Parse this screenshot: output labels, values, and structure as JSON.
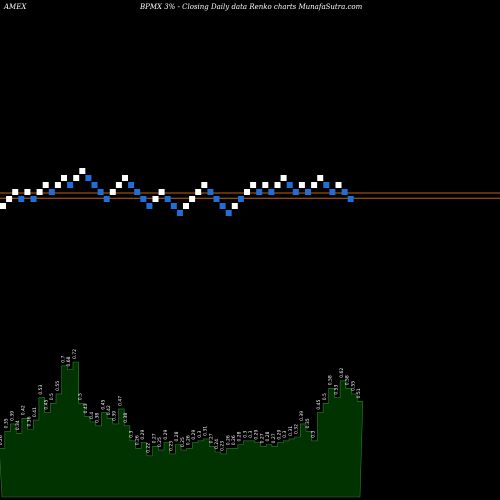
{
  "header": {
    "exchange": "AMEX",
    "title": "BPMX  3% -  Closing Daily data  Renko  charts MunafaSutra.com"
  },
  "colors": {
    "background": "#000000",
    "brick_up": "#ffffff",
    "brick_down": "#1e6fd9",
    "reference_line": "#c06010",
    "volume_fill": "#003300",
    "volume_stroke": "#2e7d32"
  },
  "chart_data": [
    {
      "type": "renko",
      "bricks": [
        {
          "level": 0,
          "dir": "up"
        },
        {
          "level": 1,
          "dir": "up"
        },
        {
          "level": 2,
          "dir": "up"
        },
        {
          "level": 1,
          "dir": "down"
        },
        {
          "level": 2,
          "dir": "up"
        },
        {
          "level": 1,
          "dir": "down"
        },
        {
          "level": 2,
          "dir": "up"
        },
        {
          "level": 3,
          "dir": "up"
        },
        {
          "level": 2,
          "dir": "down"
        },
        {
          "level": 3,
          "dir": "up"
        },
        {
          "level": 4,
          "dir": "up"
        },
        {
          "level": 3,
          "dir": "down"
        },
        {
          "level": 4,
          "dir": "up"
        },
        {
          "level": 5,
          "dir": "up"
        },
        {
          "level": 4,
          "dir": "down"
        },
        {
          "level": 3,
          "dir": "down"
        },
        {
          "level": 2,
          "dir": "down"
        },
        {
          "level": 1,
          "dir": "down"
        },
        {
          "level": 2,
          "dir": "up"
        },
        {
          "level": 3,
          "dir": "up"
        },
        {
          "level": 4,
          "dir": "up"
        },
        {
          "level": 3,
          "dir": "down"
        },
        {
          "level": 2,
          "dir": "down"
        },
        {
          "level": 1,
          "dir": "down"
        },
        {
          "level": 0,
          "dir": "down"
        },
        {
          "level": 1,
          "dir": "up"
        },
        {
          "level": 2,
          "dir": "up"
        },
        {
          "level": 1,
          "dir": "down"
        },
        {
          "level": 0,
          "dir": "down"
        },
        {
          "level": -1,
          "dir": "down"
        },
        {
          "level": 0,
          "dir": "up"
        },
        {
          "level": 1,
          "dir": "up"
        },
        {
          "level": 2,
          "dir": "up"
        },
        {
          "level": 3,
          "dir": "up"
        },
        {
          "level": 2,
          "dir": "down"
        },
        {
          "level": 1,
          "dir": "down"
        },
        {
          "level": 0,
          "dir": "down"
        },
        {
          "level": -1,
          "dir": "down"
        },
        {
          "level": 0,
          "dir": "up"
        },
        {
          "level": 1,
          "dir": "down"
        },
        {
          "level": 2,
          "dir": "up"
        },
        {
          "level": 3,
          "dir": "up"
        },
        {
          "level": 2,
          "dir": "down"
        },
        {
          "level": 3,
          "dir": "up"
        },
        {
          "level": 2,
          "dir": "down"
        },
        {
          "level": 3,
          "dir": "up"
        },
        {
          "level": 4,
          "dir": "up"
        },
        {
          "level": 3,
          "dir": "down"
        },
        {
          "level": 2,
          "dir": "down"
        },
        {
          "level": 3,
          "dir": "up"
        },
        {
          "level": 2,
          "dir": "down"
        },
        {
          "level": 3,
          "dir": "up"
        },
        {
          "level": 4,
          "dir": "up"
        },
        {
          "level": 3,
          "dir": "down"
        },
        {
          "level": 2,
          "dir": "down"
        },
        {
          "level": 3,
          "dir": "up"
        },
        {
          "level": 2,
          "dir": "down"
        },
        {
          "level": 1,
          "dir": "down"
        }
      ],
      "reference_lines": [
        1.5,
        0.75
      ]
    },
    {
      "type": "bar",
      "title": "volume",
      "values": [
        0.26,
        0.35,
        0.39,
        0.34,
        0.42,
        0.36,
        0.41,
        0.53,
        0.45,
        0.5,
        0.55,
        0.7,
        0.68,
        0.72,
        0.5,
        0.43,
        0.4,
        0.38,
        0.45,
        0.42,
        0.39,
        0.47,
        0.38,
        0.3,
        0.26,
        0.29,
        0.22,
        0.27,
        0.25,
        0.29,
        0.23,
        0.28,
        0.25,
        0.26,
        0.29,
        0.3,
        0.31,
        0.27,
        0.24,
        0.23,
        0.26,
        0.26,
        0.28,
        0.3,
        0.3,
        0.29,
        0.27,
        0.28,
        0.27,
        0.29,
        0.3,
        0.31,
        0.32,
        0.39,
        0.35,
        0.3,
        0.45,
        0.5,
        0.58,
        0.53,
        0.62,
        0.58,
        0.55,
        0.51
      ],
      "value_labels": [
        "0.26",
        "0.35",
        "0.39",
        "0.34",
        "0.42",
        "0.36",
        "0.41",
        "0.53",
        "0.45",
        "0.5",
        "0.55",
        "0.7",
        "0.68",
        "0.72",
        "0.5",
        "0.43",
        "0.4",
        "0.38",
        "0.45",
        "0.42",
        "0.39",
        "0.47",
        "0.38",
        "0.3",
        "0.26",
        "0.29",
        "0.22",
        "0.27",
        "0.25",
        "0.29",
        "0.23",
        "0.28",
        "0.25",
        "0.26",
        "0.29",
        "0.3",
        "0.31",
        "0.27",
        "0.24",
        "0.23",
        "0.26",
        "0.26",
        "0.28",
        "0.3",
        "0.3",
        "0.29",
        "0.27",
        "0.28",
        "0.27",
        "0.29",
        "0.3",
        "0.31",
        "0.32",
        "0.39",
        "0.35",
        "0.3",
        "0.45",
        "0.5",
        "0.58",
        "0.53",
        "0.62",
        "0.58",
        "0.55",
        "0.51"
      ],
      "ylim": [
        0,
        0.72
      ]
    }
  ]
}
